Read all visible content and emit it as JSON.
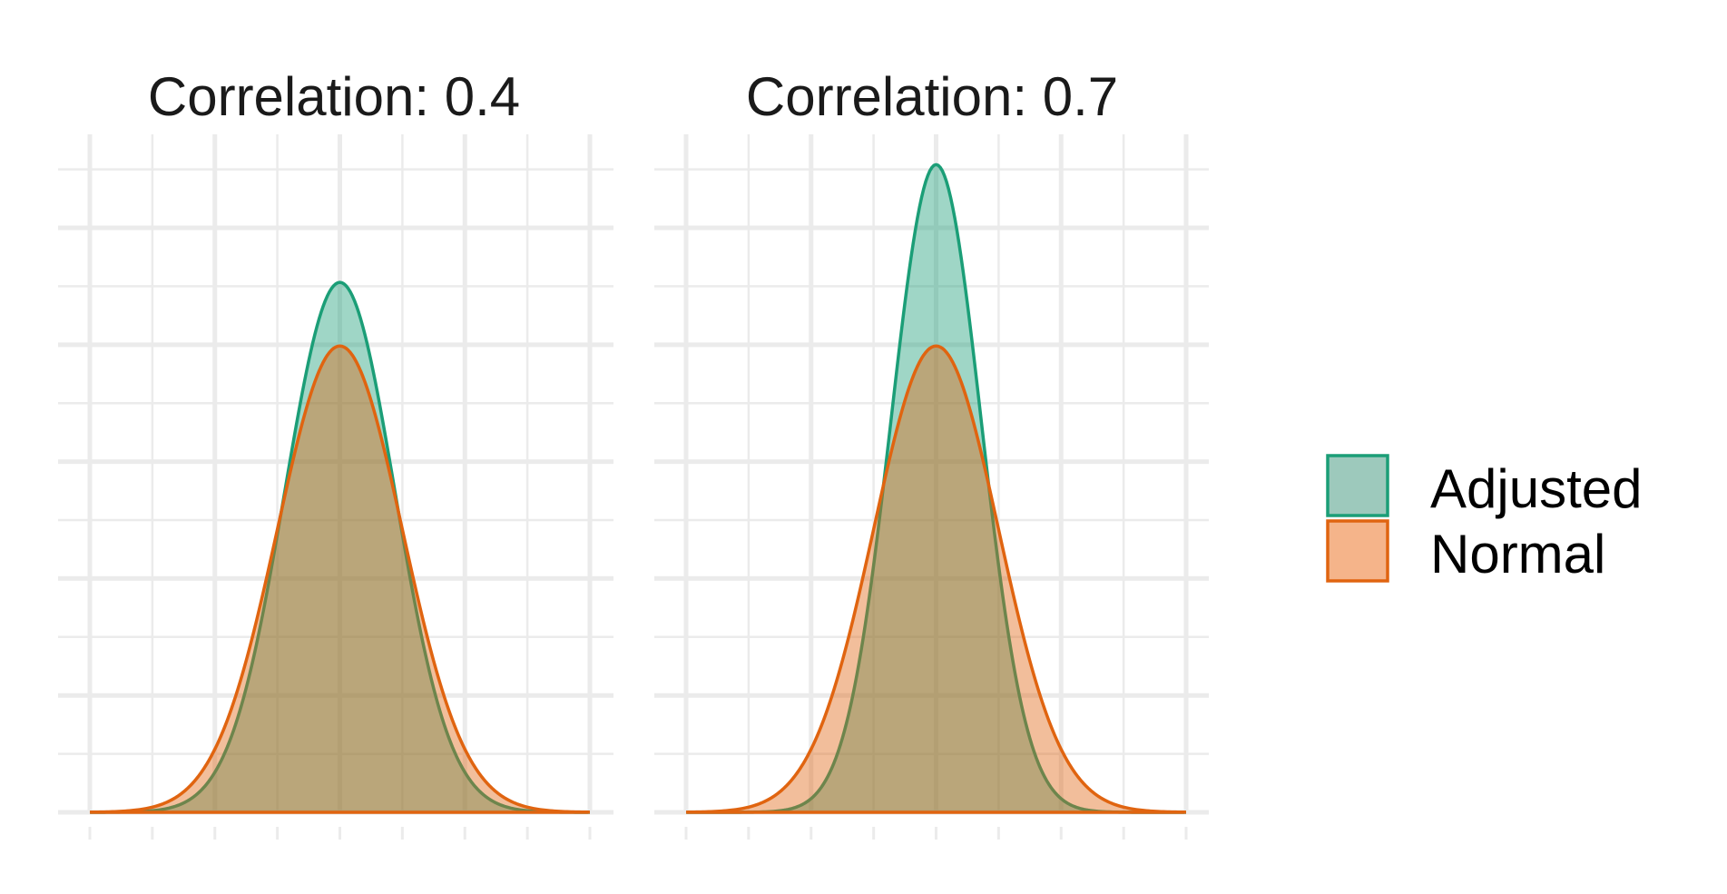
{
  "chart_data": {
    "type": "area",
    "panels": [
      {
        "title": "Correlation: 0.4",
        "xlim": [
          -4,
          4
        ],
        "ylim": [
          0,
          0.58
        ],
        "series": [
          {
            "name": "Adjusted",
            "mean": 0,
            "sd": 0.88
          },
          {
            "name": "Normal",
            "mean": 0,
            "sd": 1.0
          }
        ]
      },
      {
        "title": "Correlation: 0.7",
        "xlim": [
          -4,
          4
        ],
        "ylim": [
          0,
          0.58
        ],
        "series": [
          {
            "name": "Adjusted",
            "mean": 0,
            "sd": 0.72
          },
          {
            "name": "Normal",
            "mean": 0,
            "sd": 1.0
          }
        ]
      }
    ],
    "legend": {
      "placement": "right",
      "entries": [
        {
          "label": "Adjusted",
          "color": "#1b9e77",
          "fill": "#9dc9bc"
        },
        {
          "label": "Normal",
          "color": "#e06410",
          "fill": "#f5b48a"
        }
      ]
    },
    "grid": true,
    "xlabel": "",
    "ylabel": ""
  }
}
